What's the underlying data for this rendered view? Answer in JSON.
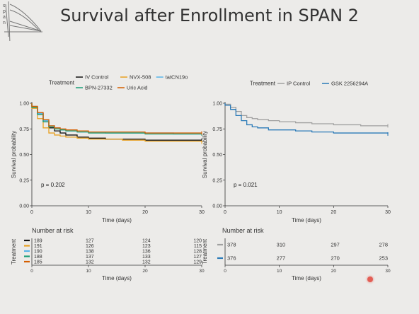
{
  "slide": {
    "logo_text": "span",
    "title": "Survival after Enrollment in SPAN 2",
    "cursor_color": "#e2463c"
  },
  "chart_data": [
    {
      "type": "line",
      "legend_title": "Treatment",
      "legend_position": "top",
      "series": [
        {
          "name": "IV Control",
          "color": "#111111",
          "x": [
            0,
            1,
            2,
            3,
            4,
            5,
            6,
            8,
            10,
            13,
            16,
            20,
            25,
            30
          ],
          "values": [
            0.96,
            0.9,
            0.82,
            0.76,
            0.73,
            0.71,
            0.69,
            0.67,
            0.66,
            0.65,
            0.65,
            0.64,
            0.64,
            0.64
          ]
        },
        {
          "name": "NVX-508",
          "color": "#e8a020",
          "x": [
            0,
            1,
            2,
            3,
            4,
            5,
            6,
            8,
            10,
            13,
            16,
            20,
            25,
            30
          ],
          "values": [
            0.95,
            0.85,
            0.76,
            0.71,
            0.69,
            0.68,
            0.67,
            0.66,
            0.65,
            0.65,
            0.64,
            0.63,
            0.63,
            0.62
          ]
        },
        {
          "name": "tatCN19o",
          "color": "#56b4e9",
          "x": [
            0,
            1,
            2,
            3,
            4,
            5,
            6,
            8,
            10,
            13,
            16,
            20,
            25,
            30
          ],
          "values": [
            0.97,
            0.9,
            0.83,
            0.78,
            0.76,
            0.74,
            0.73,
            0.72,
            0.72,
            0.71,
            0.71,
            0.71,
            0.7,
            0.7
          ]
        },
        {
          "name": "BPN-27332",
          "color": "#1a9e77",
          "x": [
            0,
            1,
            2,
            3,
            4,
            5,
            6,
            8,
            10,
            13,
            16,
            20,
            25,
            30
          ],
          "values": [
            0.96,
            0.89,
            0.82,
            0.77,
            0.75,
            0.74,
            0.73,
            0.72,
            0.71,
            0.71,
            0.71,
            0.7,
            0.7,
            0.7
          ]
        },
        {
          "name": "Uric Acid",
          "color": "#d55e00",
          "x": [
            0,
            1,
            2,
            3,
            4,
            5,
            6,
            8,
            10,
            13,
            16,
            20,
            25,
            30
          ],
          "values": [
            0.97,
            0.91,
            0.84,
            0.78,
            0.76,
            0.75,
            0.74,
            0.73,
            0.72,
            0.72,
            0.72,
            0.71,
            0.71,
            0.71
          ]
        }
      ],
      "xlabel": "Time (days)",
      "ylabel": "Survival probability",
      "xlim": [
        0,
        30
      ],
      "ylim": [
        0,
        1
      ],
      "x_ticks": [
        0,
        10,
        20,
        30
      ],
      "y_ticks": [
        "0.00",
        "0.25",
        "0.50",
        "0.75",
        "1.00"
      ],
      "annotation": "p = 0.202",
      "grid": false
    },
    {
      "type": "line",
      "legend_title": "Treatment",
      "legend_position": "top",
      "series": [
        {
          "name": "IP Control",
          "color": "#a0a0a0",
          "x": [
            0,
            1,
            2,
            3,
            4,
            5,
            6,
            8,
            10,
            13,
            16,
            20,
            25,
            30
          ],
          "values": [
            0.99,
            0.96,
            0.92,
            0.88,
            0.86,
            0.85,
            0.84,
            0.83,
            0.82,
            0.81,
            0.8,
            0.79,
            0.78,
            0.78
          ]
        },
        {
          "name": "GSK 2256294A",
          "color": "#2a7ab8",
          "x": [
            0,
            1,
            2,
            3,
            4,
            5,
            6,
            8,
            10,
            13,
            16,
            20,
            25,
            30
          ],
          "values": [
            0.98,
            0.94,
            0.88,
            0.83,
            0.79,
            0.77,
            0.76,
            0.74,
            0.74,
            0.73,
            0.72,
            0.71,
            0.71,
            0.7
          ]
        }
      ],
      "xlabel": "Time (days)",
      "ylabel": "Survival probability",
      "xlim": [
        0,
        30
      ],
      "ylim": [
        0,
        1
      ],
      "x_ticks": [
        0,
        10,
        20,
        30
      ],
      "y_ticks": [
        "0.00",
        "0.25",
        "0.50",
        "0.75",
        "1.00"
      ],
      "annotation": "p = 0.021",
      "grid": false
    },
    {
      "type": "table",
      "title": "Number at risk",
      "ylabel": "Treatment",
      "xlabel": "Time (days)",
      "x_ticks": [
        0,
        10,
        20,
        30
      ],
      "columns": [
        0,
        10,
        20,
        30
      ],
      "rows": [
        {
          "color": "#111111",
          "values": [
            189,
            127,
            124,
            120
          ]
        },
        {
          "color": "#e8a020",
          "values": [
            191,
            126,
            123,
            115
          ]
        },
        {
          "color": "#56b4e9",
          "values": [
            190,
            138,
            136,
            128
          ]
        },
        {
          "color": "#1a9e77",
          "values": [
            188,
            137,
            133,
            127
          ]
        },
        {
          "color": "#d55e00",
          "values": [
            185,
            132,
            132,
            129
          ]
        }
      ]
    },
    {
      "type": "table",
      "title": "Number at risk",
      "ylabel": "Treatment",
      "xlabel": "Time (days)",
      "x_ticks": [
        0,
        10,
        20,
        30
      ],
      "columns": [
        0,
        10,
        20,
        30
      ],
      "rows": [
        {
          "color": "#a0a0a0",
          "values": [
            378,
            310,
            297,
            278
          ]
        },
        {
          "color": "#2a7ab8",
          "values": [
            376,
            277,
            270,
            253
          ]
        }
      ]
    }
  ]
}
